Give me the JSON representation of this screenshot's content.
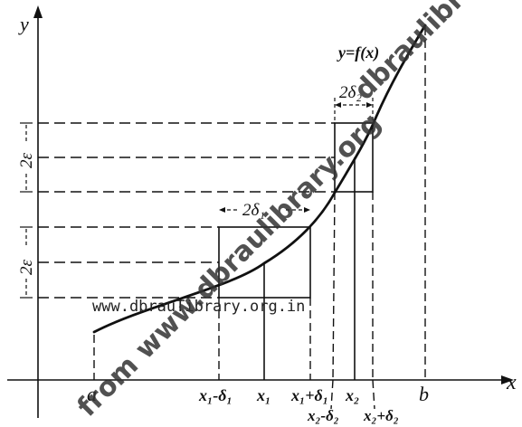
{
  "axes": {
    "x_label": "x",
    "y_label": "y"
  },
  "curve": {
    "label": "y=f(x)"
  },
  "interval_labels": {
    "delta1": "2δ₁",
    "delta2": "2δ₂"
  },
  "epsilon_labels": {
    "lower": "2ε",
    "upper": "2ε"
  },
  "x_ticks": {
    "a": "a",
    "x1_minus": "x₁-δ₁",
    "x1": "x₁",
    "x1_plus": "x₁+δ₁",
    "x2": "x₂",
    "b": "b",
    "x2_minus": "x₂-δ₂",
    "x2_plus": "x₂+δ₂"
  },
  "watermarks": {
    "inline": "www.dbrauTibrary.org.in",
    "diagonal_top": "dbraulibrary.org",
    "diagonal_mid": "from www.dbraulibrary.org"
  },
  "colors": {
    "ink": "#111111",
    "watermark": "#333333"
  }
}
